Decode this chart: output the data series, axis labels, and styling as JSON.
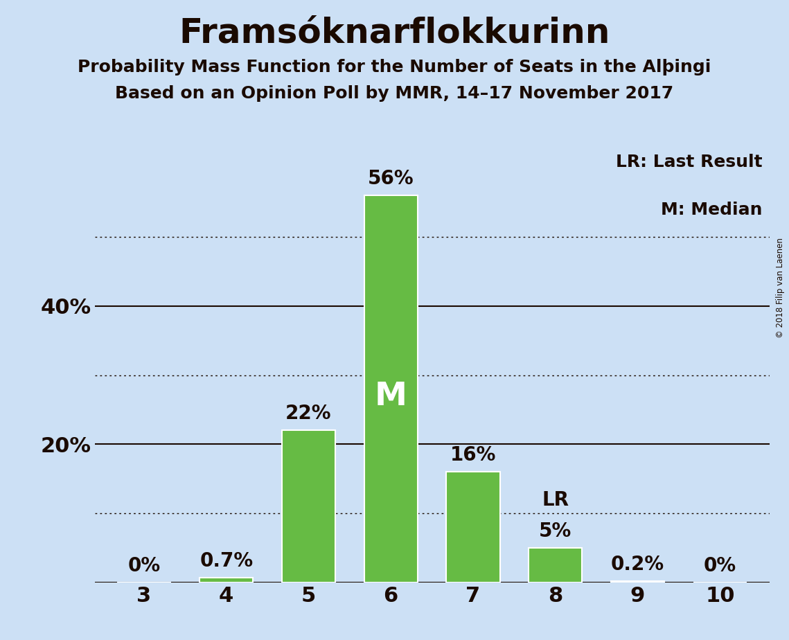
{
  "title": "Framsóknarflokkurinn",
  "subtitle1": "Probability Mass Function for the Number of Seats in the Alþingi",
  "subtitle2": "Based on an Opinion Poll by MMR, 14–17 November 2017",
  "copyright": "© 2018 Filip van Laenen",
  "categories": [
    3,
    4,
    5,
    6,
    7,
    8,
    9,
    10
  ],
  "values": [
    0.0,
    0.7,
    22.0,
    56.0,
    16.0,
    5.0,
    0.2,
    0.0
  ],
  "bar_color": "#66bb44",
  "background_color": "#cce0f5",
  "text_color": "#1a0a00",
  "median_bar": 6,
  "lr_bar": 8,
  "solid_ticks": [
    20,
    40
  ],
  "dotted_ticks": [
    10,
    30,
    50
  ],
  "ylim": [
    0,
    63
  ],
  "legend_lr": "LR: Last Result",
  "legend_m": "M: Median",
  "bar_width": 0.65,
  "title_fontsize": 36,
  "subtitle_fontsize": 18,
  "tick_label_fontsize": 22,
  "bar_label_fontsize": 20,
  "legend_fontsize": 18,
  "M_fontsize": 34
}
